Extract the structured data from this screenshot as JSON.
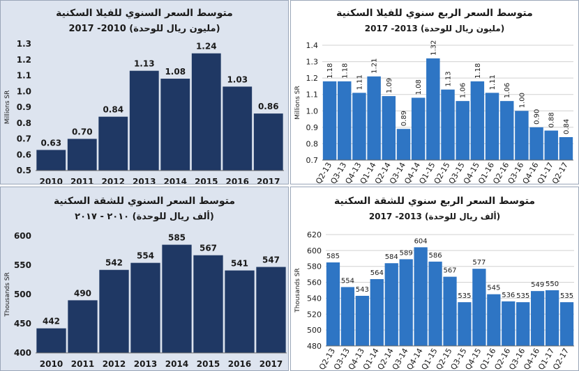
{
  "chart_data": [
    {
      "type": "bar",
      "title": "متوسط السعر السنوي للفيلا السكنية",
      "subtitle": "(مليون ريال للوحدة) 2010- 2017",
      "ylabel": "Millions SR",
      "ylim": [
        0.5,
        1.3
      ],
      "yticks": [
        "0.5",
        "0.6",
        "0.7",
        "0.8",
        "0.9",
        "1.0",
        "1.1",
        "1.2",
        "1.3"
      ],
      "ytick_values": [
        0.5,
        0.6,
        0.7,
        0.8,
        0.9,
        1.0,
        1.1,
        1.2,
        1.3
      ],
      "categories": [
        "2010",
        "2011",
        "2012",
        "2013",
        "2014",
        "2015",
        "2016",
        "2017"
      ],
      "values": [
        0.63,
        0.7,
        0.84,
        1.13,
        1.08,
        1.24,
        1.03,
        0.86
      ],
      "labels": [
        "0.63",
        "0.70",
        "0.84",
        "1.13",
        "1.08",
        "1.24",
        "1.03",
        "0.86"
      ],
      "bar_color": "#1f3864",
      "background": "#dde4ef"
    },
    {
      "type": "bar",
      "title": "متوسط السعر الربع سنوي للفيلا السكنية",
      "subtitle": "(مليون ريال للوحدة) 2013- 2017",
      "ylabel": "Millions SR",
      "ylim": [
        0.7,
        1.4
      ],
      "yticks": [
        "0.7",
        "0.8",
        "0.9",
        "1.0",
        "1.1",
        "1.2",
        "1.3",
        "1.4"
      ],
      "ytick_values": [
        0.7,
        0.8,
        0.9,
        1.0,
        1.1,
        1.2,
        1.3,
        1.4
      ],
      "categories": [
        "Q2-13",
        "Q3-13",
        "Q4-13",
        "Q1-14",
        "Q2-14",
        "Q3-14",
        "Q4-14",
        "Q1-15",
        "Q2-15",
        "Q3-15",
        "Q4-15",
        "Q1-16",
        "Q2-16",
        "Q3-16",
        "Q4-16",
        "Q1-17",
        "Q2-17"
      ],
      "values": [
        1.18,
        1.18,
        1.11,
        1.21,
        1.09,
        0.89,
        1.08,
        1.32,
        1.13,
        1.06,
        1.18,
        1.11,
        1.06,
        1.0,
        0.9,
        0.88,
        0.84
      ],
      "labels": [
        "1.18",
        "1.18",
        "1.11",
        "1.21",
        "1.09",
        "0.89",
        "1.08",
        "1.32",
        "1.13",
        "1.06",
        "1.18",
        "1.11",
        "1.06",
        "1.00",
        "0.90",
        "0.88",
        "0.84"
      ],
      "bar_color": "#2e75c4",
      "background": "#ffffff"
    },
    {
      "type": "bar",
      "title": "متوسط السعر السنوي للشقة السكنية",
      "subtitle": "(ألف ريال للوحدة)  ٢٠١٠ - ٢٠١٧",
      "ylabel": "Thousands SR",
      "ylim": [
        400,
        600
      ],
      "yticks": [
        "400",
        "450",
        "500",
        "550",
        "600"
      ],
      "ytick_values": [
        400,
        450,
        500,
        550,
        600
      ],
      "categories": [
        "2010",
        "2011",
        "2012",
        "2013",
        "2014",
        "2015",
        "2016",
        "2017"
      ],
      "values": [
        442,
        490,
        542,
        554,
        585,
        567,
        541,
        547
      ],
      "labels": [
        "442",
        "490",
        "542",
        "554",
        "585",
        "567",
        "541",
        "547"
      ],
      "bar_color": "#1f3864",
      "background": "#dde4ef"
    },
    {
      "type": "bar",
      "title": "متوسط السعر الربع سنوي للشقة السكنية",
      "subtitle": "(ألف ريال للوحدة) 2013- 2017",
      "ylabel": "Thousands SR",
      "ylim": [
        480,
        620
      ],
      "yticks": [
        "480",
        "500",
        "520",
        "540",
        "560",
        "580",
        "600",
        "620"
      ],
      "ytick_values": [
        480,
        500,
        520,
        540,
        560,
        580,
        600,
        620
      ],
      "categories": [
        "Q2-13",
        "Q3-13",
        "Q4-13",
        "Q1-14",
        "Q2-14",
        "Q3-14",
        "Q4-14",
        "Q1-15",
        "Q2-15",
        "Q3-15",
        "Q4-15",
        "Q1-16",
        "Q2-16",
        "Q3-16",
        "Q4-16",
        "Q1-17",
        "Q2-17"
      ],
      "values": [
        585,
        554,
        543,
        564,
        584,
        589,
        604,
        586,
        567,
        535,
        577,
        545,
        536,
        535,
        549,
        550,
        535
      ],
      "labels": [
        "585",
        "554",
        "543",
        "564",
        "584",
        "589",
        "604",
        "586",
        "567",
        "535",
        "577",
        "545",
        "536",
        "535",
        "549",
        "550",
        "535"
      ],
      "bar_color": "#2e75c4",
      "background": "#ffffff"
    }
  ]
}
